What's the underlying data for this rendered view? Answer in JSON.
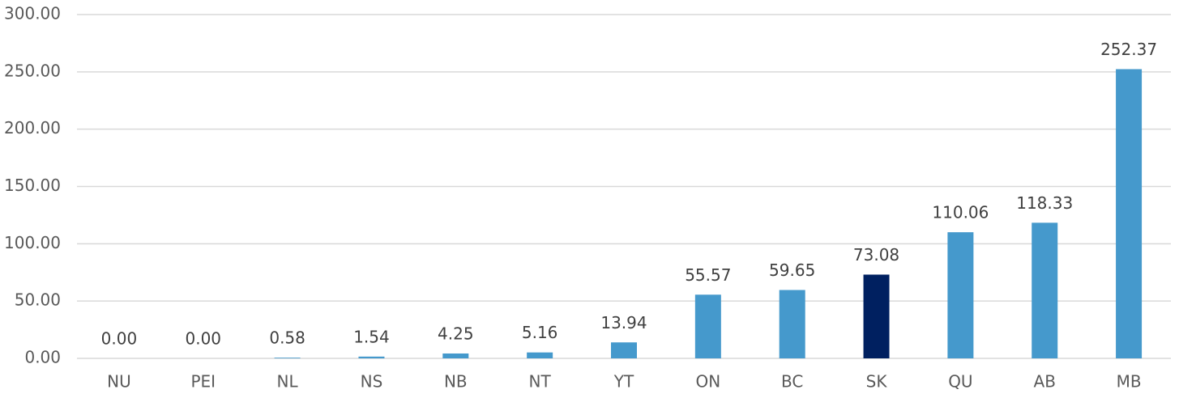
{
  "chart_data": {
    "type": "bar",
    "categories": [
      "NU",
      "PEI",
      "NL",
      "NS",
      "NB",
      "NT",
      "YT",
      "ON",
      "BC",
      "SK",
      "QU",
      "AB",
      "MB"
    ],
    "values": [
      0,
      0,
      0.58,
      1.54,
      4.25,
      5.16,
      13.94,
      55.57,
      59.65,
      73.08,
      110.06,
      118.33,
      252.37
    ],
    "value_labels": [
      "0.00",
      "0.00",
      "0.58",
      "1.54",
      "4.25",
      "5.16",
      "13.94",
      "55.57",
      "59.65",
      "73.08",
      "110.06",
      "118.33",
      "252.37"
    ],
    "colors": [
      "#4599cc",
      "#4599cc",
      "#4599cc",
      "#4599cc",
      "#4599cc",
      "#4599cc",
      "#4599cc",
      "#4599cc",
      "#4599cc",
      "#002060",
      "#4599cc",
      "#4599cc",
      "#4599cc"
    ],
    "ylim": [
      0,
      300
    ],
    "yticks": [
      {
        "value": 0,
        "label": "0.00"
      },
      {
        "value": 50,
        "label": "50.00"
      },
      {
        "value": 100,
        "label": "100.00"
      },
      {
        "value": 150,
        "label": "150.00"
      },
      {
        "value": 200,
        "label": "200.00"
      },
      {
        "value": 250,
        "label": "250.00"
      },
      {
        "value": 300,
        "label": "300.00"
      }
    ],
    "grid": true
  }
}
